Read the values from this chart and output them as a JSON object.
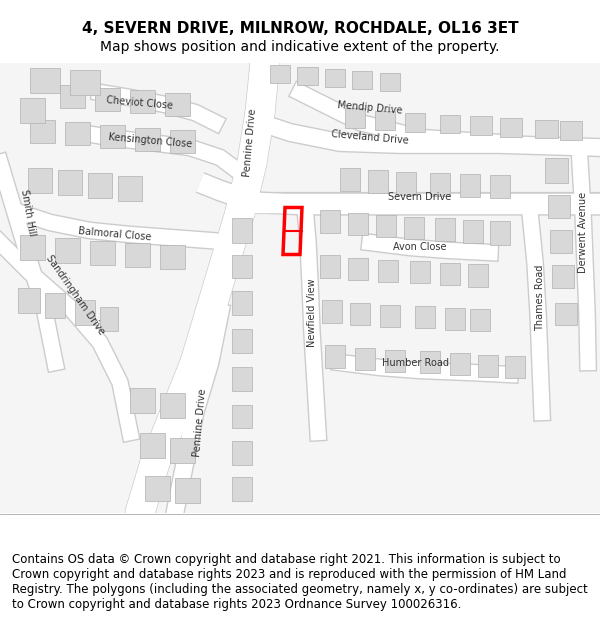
{
  "title_line1": "4, SEVERN DRIVE, MILNROW, ROCHDALE, OL16 3ET",
  "title_line2": "Map shows position and indicative extent of the property.",
  "footer_text": "Contains OS data © Crown copyright and database right 2021. This information is subject to Crown copyright and database rights 2023 and is reproduced with the permission of HM Land Registry. The polygons (including the associated geometry, namely x, y co-ordinates) are subject to Crown copyright and database rights 2023 Ordnance Survey 100026316.",
  "bg_color": "#f0f0f0",
  "map_bg": "#f5f5f5",
  "road_color": "#ffffff",
  "building_color": "#d8d8d8",
  "building_outline": "#b0b0b0",
  "highlight_color": "#ff0000",
  "text_color": "#333333",
  "title_fontsize": 11,
  "subtitle_fontsize": 10,
  "footer_fontsize": 8.5,
  "label_fontsize": 7
}
